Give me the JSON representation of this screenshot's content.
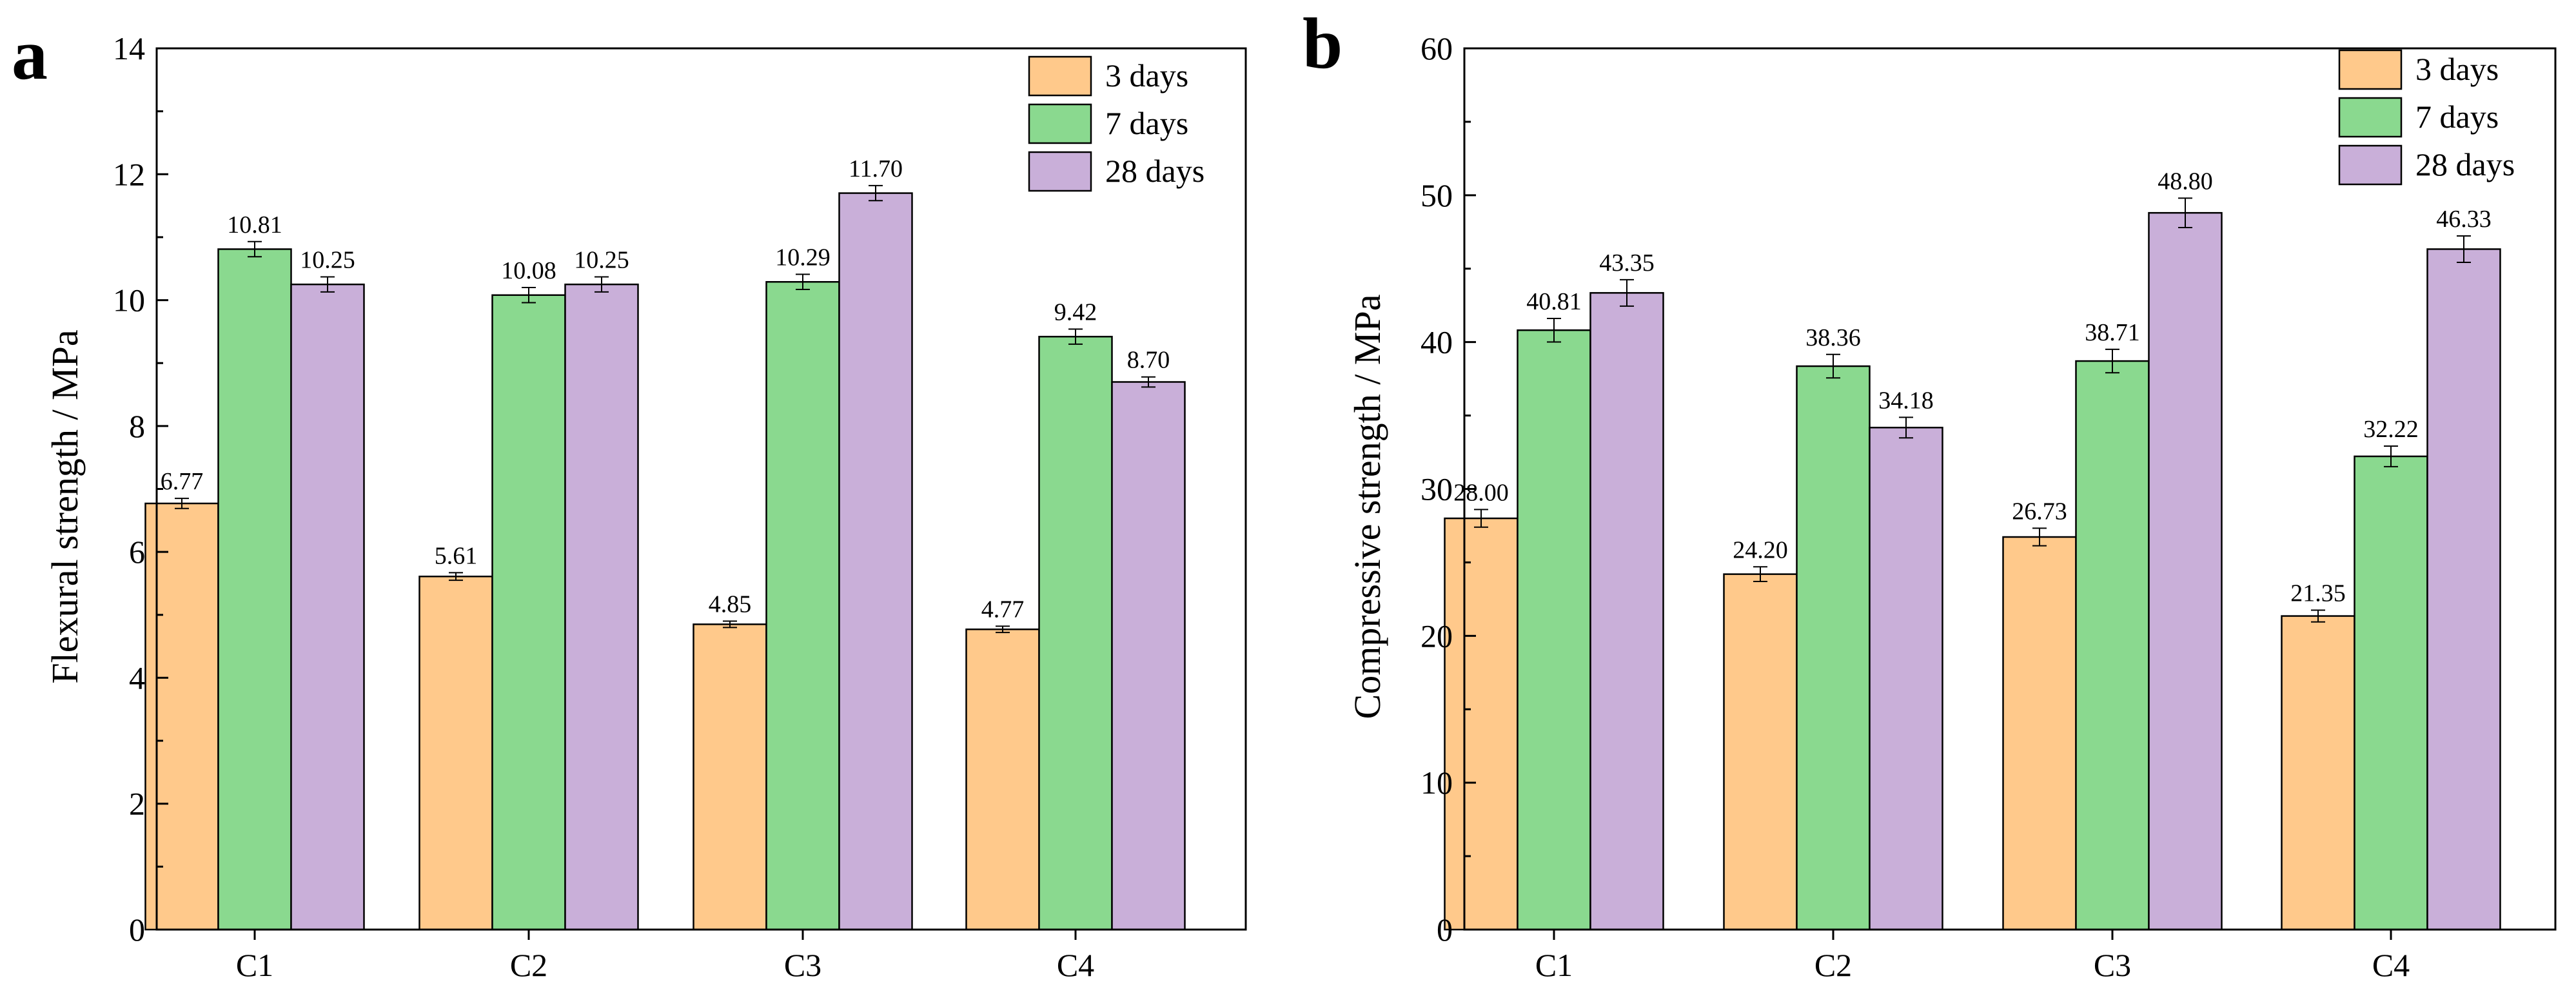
{
  "colors": {
    "3 days": "#ffc98b",
    "7 days": "#8ad98f",
    "28 days": "#c9afd9",
    "axis": "#000000"
  },
  "chart_data": [
    {
      "type": "bar",
      "panel_label": "a",
      "title": "",
      "xlabel": "",
      "ylabel": "Flexural strength / MPa",
      "ylim": [
        0,
        14
      ],
      "yticks": [
        0,
        2,
        4,
        6,
        8,
        10,
        12,
        14
      ],
      "ytick_labels": [
        "0",
        "2",
        "4",
        "6",
        "8",
        "10",
        "12",
        "14"
      ],
      "categories": [
        "C1",
        "C2",
        "C3",
        "C4"
      ],
      "legend_position": "top-right",
      "series": [
        {
          "name": "3 days",
          "values": [
            6.77,
            5.61,
            4.85,
            4.77
          ],
          "labels": [
            "6.77",
            "5.61",
            "4.85",
            "4.77"
          ],
          "errors": [
            0.08,
            0.06,
            0.05,
            0.05
          ]
        },
        {
          "name": "7 days",
          "values": [
            10.81,
            10.08,
            10.29,
            9.42
          ],
          "labels": [
            "10.81",
            "10.08",
            "10.29",
            "9.42"
          ],
          "errors": [
            0.12,
            0.12,
            0.12,
            0.12
          ]
        },
        {
          "name": "28 days",
          "values": [
            10.25,
            10.25,
            11.7,
            8.7
          ],
          "labels": [
            "10.25",
            "10.25",
            "11.70",
            "8.70"
          ],
          "errors": [
            0.12,
            0.12,
            0.12,
            0.08
          ]
        }
      ]
    },
    {
      "type": "bar",
      "panel_label": "b",
      "title": "",
      "xlabel": "",
      "ylabel": "Compressive strength / MPa",
      "ylim": [
        0,
        60
      ],
      "yticks": [
        0,
        10,
        20,
        30,
        40,
        50,
        60
      ],
      "ytick_labels": [
        "0",
        "10",
        "20",
        "30",
        "40",
        "50",
        "60"
      ],
      "categories": [
        "C1",
        "C2",
        "C3",
        "C4"
      ],
      "legend_position": "top-right",
      "series": [
        {
          "name": "3 days",
          "values": [
            28.0,
            24.2,
            26.73,
            21.35
          ],
          "labels": [
            "28.00",
            "24.20",
            "26.73",
            "21.35"
          ],
          "errors": [
            0.6,
            0.5,
            0.6,
            0.4
          ]
        },
        {
          "name": "7 days",
          "values": [
            40.81,
            38.36,
            38.71,
            32.22
          ],
          "labels": [
            "40.81",
            "38.36",
            "38.71",
            "32.22"
          ],
          "errors": [
            0.8,
            0.8,
            0.8,
            0.7
          ]
        },
        {
          "name": "28 days",
          "values": [
            43.35,
            34.18,
            48.8,
            46.33
          ],
          "labels": [
            "43.35",
            "34.18",
            "48.80",
            "46.33"
          ],
          "errors": [
            0.9,
            0.7,
            1.0,
            0.9
          ]
        }
      ]
    }
  ]
}
